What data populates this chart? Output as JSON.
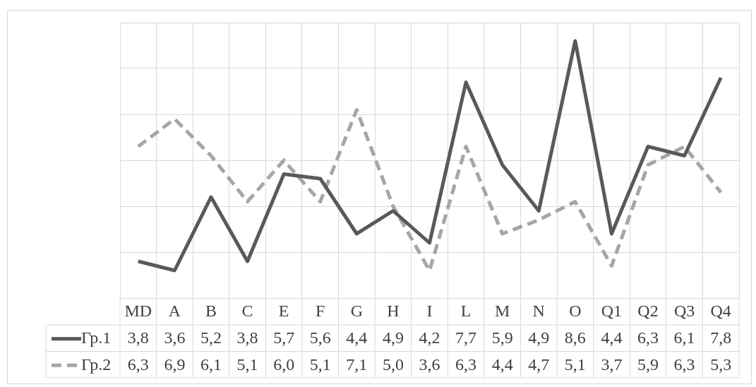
{
  "chart_data": {
    "type": "line",
    "categories": [
      "MD",
      "A",
      "B",
      "C",
      "E",
      "F",
      "G",
      "H",
      "I",
      "L",
      "M",
      "N",
      "O",
      "Q1",
      "Q2",
      "Q3",
      "Q4"
    ],
    "series": [
      {
        "name": "Гр.1",
        "color": "#595959",
        "line_style": "solid",
        "values": [
          3.8,
          3.6,
          5.2,
          3.8,
          5.7,
          5.6,
          4.4,
          4.9,
          4.2,
          7.7,
          5.9,
          4.9,
          8.6,
          4.4,
          6.3,
          6.1,
          7.8
        ],
        "value_labels": [
          "3,8",
          "3,6",
          "5,2",
          "3,8",
          "5,7",
          "5,6",
          "4,4",
          "4,9",
          "4,2",
          "7,7",
          "5,9",
          "4,9",
          "8,6",
          "4,4",
          "6,3",
          "6,1",
          "7,8"
        ]
      },
      {
        "name": "Гр.2",
        "color": "#a6a6a6",
        "line_style": "dashed",
        "values": [
          6.3,
          6.9,
          6.1,
          5.1,
          6.0,
          5.1,
          7.1,
          5.0,
          3.6,
          6.3,
          4.4,
          4.7,
          5.1,
          3.7,
          5.9,
          6.3,
          5.3
        ],
        "value_labels": [
          "6,3",
          "6,9",
          "6,1",
          "5,1",
          "6,0",
          "5,1",
          "7,1",
          "5,0",
          "3,6",
          "6,3",
          "4,4",
          "4,7",
          "5,1",
          "3,7",
          "5,9",
          "6,3",
          "5,3"
        ]
      }
    ],
    "grid": true,
    "tick_labels": "x",
    "marker": "none",
    "legend": "bottom"
  }
}
